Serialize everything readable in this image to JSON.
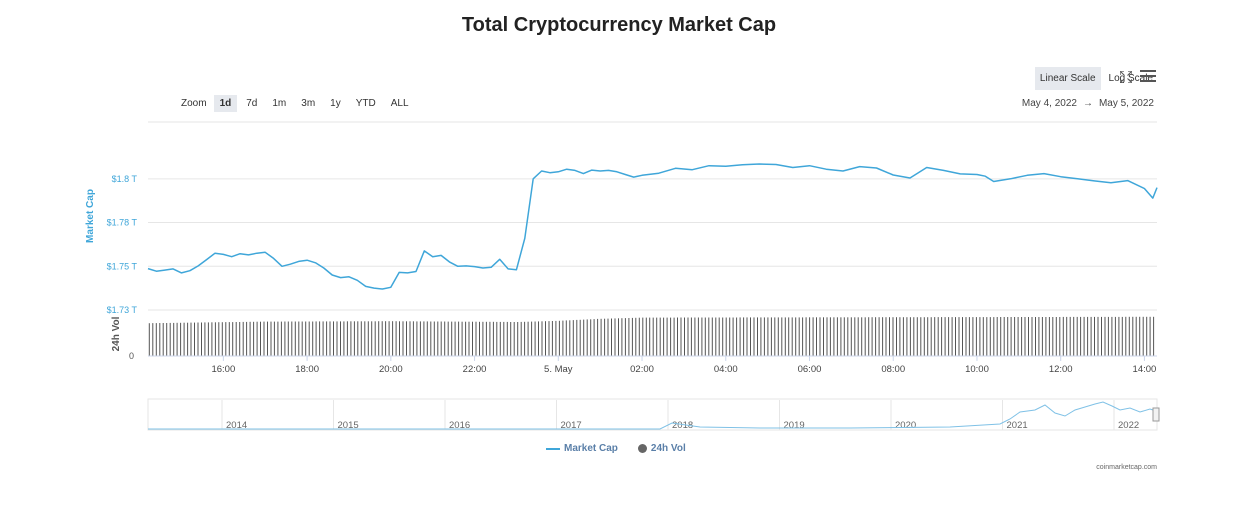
{
  "title": "Total Cryptocurrency Market Cap",
  "scale": {
    "linear_label": "Linear Scale",
    "log_label": "Log Scale",
    "active": "linear"
  },
  "zoom": {
    "label": "Zoom",
    "options": [
      "1d",
      "7d",
      "1m",
      "3m",
      "1y",
      "YTD",
      "ALL"
    ],
    "active": "1d"
  },
  "date_range": {
    "from": "May 4, 2022",
    "arrow": "→",
    "to": "May 5, 2022"
  },
  "legend": {
    "market_cap": "Market Cap",
    "volume": "24h Vol"
  },
  "credit": "coinmarketcap.com",
  "colors": {
    "market_cap": "#3fa6d9",
    "volume": "#555555",
    "grid": "#e6e6e6"
  },
  "chart_data": {
    "type": "line",
    "y_axis_label": "Market Cap",
    "y2_axis_label": "24h Vol",
    "y_ticks": [
      "$1.8 T",
      "$1.78 T",
      "$1.75 T",
      "$1.73 T"
    ],
    "y_tick_values": [
      1.8,
      1.775,
      1.75,
      1.725
    ],
    "y2_ticks": [
      "0"
    ],
    "x_ticks": [
      "16:00",
      "18:00",
      "20:00",
      "22:00",
      "5. May",
      "02:00",
      "04:00",
      "06:00",
      "08:00",
      "10:00",
      "12:00",
      "14:00"
    ],
    "x_tick_hours": [
      16,
      18,
      20,
      22,
      24,
      26,
      28,
      30,
      32,
      34,
      36,
      38
    ],
    "x_range_hours": [
      14.2,
      38.3
    ],
    "ylim": [
      1.725,
      1.8325
    ],
    "series": [
      {
        "name": "Market Cap",
        "x_hours": [
          14.2,
          14.4,
          14.6,
          14.8,
          15.0,
          15.2,
          15.4,
          15.6,
          15.8,
          16.0,
          16.2,
          16.4,
          16.6,
          16.8,
          17.0,
          17.2,
          17.4,
          17.6,
          17.8,
          18.0,
          18.2,
          18.4,
          18.6,
          18.8,
          19.0,
          19.2,
          19.4,
          19.6,
          19.8,
          20.0,
          20.2,
          20.4,
          20.6,
          20.8,
          21.0,
          21.2,
          21.4,
          21.6,
          21.8,
          22.0,
          22.2,
          22.4,
          22.6,
          22.8,
          23.0,
          23.2,
          23.4,
          23.6,
          23.8,
          24.0,
          24.2,
          24.4,
          24.6,
          24.8,
          25.0,
          25.2,
          25.4,
          25.6,
          25.8,
          26.0,
          26.4,
          26.8,
          27.2,
          27.6,
          28.0,
          28.4,
          28.8,
          29.2,
          29.6,
          30.0,
          30.4,
          30.8,
          31.2,
          31.6,
          32.0,
          32.4,
          32.8,
          33.2,
          33.6,
          34.0,
          34.2,
          34.4,
          34.8,
          35.2,
          35.6,
          36.0,
          36.4,
          36.8,
          37.2,
          37.6,
          38.0,
          38.2,
          38.3
        ],
        "values": [
          1.7487,
          1.7472,
          1.7478,
          1.7485,
          1.7462,
          1.7475,
          1.7502,
          1.7538,
          1.7575,
          1.7568,
          1.7555,
          1.7572,
          1.7565,
          1.7575,
          1.758,
          1.7545,
          1.75,
          1.7512,
          1.7528,
          1.7535,
          1.752,
          1.749,
          1.745,
          1.7435,
          1.744,
          1.742,
          1.7385,
          1.7375,
          1.737,
          1.738,
          1.7465,
          1.7462,
          1.747,
          1.7588,
          1.7555,
          1.7562,
          1.7525,
          1.75,
          1.7502,
          1.7498,
          1.749,
          1.7495,
          1.754,
          1.7485,
          1.748,
          1.766,
          1.8,
          1.8045,
          1.8035,
          1.804,
          1.8055,
          1.8048,
          1.803,
          1.805,
          1.8045,
          1.8048,
          1.804,
          1.8025,
          1.801,
          1.802,
          1.8032,
          1.806,
          1.8052,
          1.8075,
          1.8072,
          1.808,
          1.8085,
          1.8082,
          1.8065,
          1.8075,
          1.8055,
          1.8045,
          1.807,
          1.8062,
          1.8022,
          1.8005,
          1.8065,
          1.8048,
          1.8028,
          1.8025,
          1.8015,
          1.7985,
          1.8,
          1.802,
          1.803,
          1.8012,
          1.8,
          1.7988,
          1.7978,
          1.799,
          1.7945,
          1.789,
          1.795
        ]
      },
      {
        "name": "24h Vol",
        "x_hours": [
          14.2,
          17.0,
          20.0,
          23.0,
          24.0,
          25.0,
          26.0,
          38.3
        ],
        "values_relative": [
          0.82,
          0.86,
          0.87,
          0.85,
          0.88,
          0.93,
          0.96,
          0.98
        ]
      }
    ]
  },
  "navigator": {
    "years": [
      "2014",
      "2015",
      "2016",
      "2017",
      "2018",
      "2019",
      "2020",
      "2021",
      "2022"
    ]
  }
}
